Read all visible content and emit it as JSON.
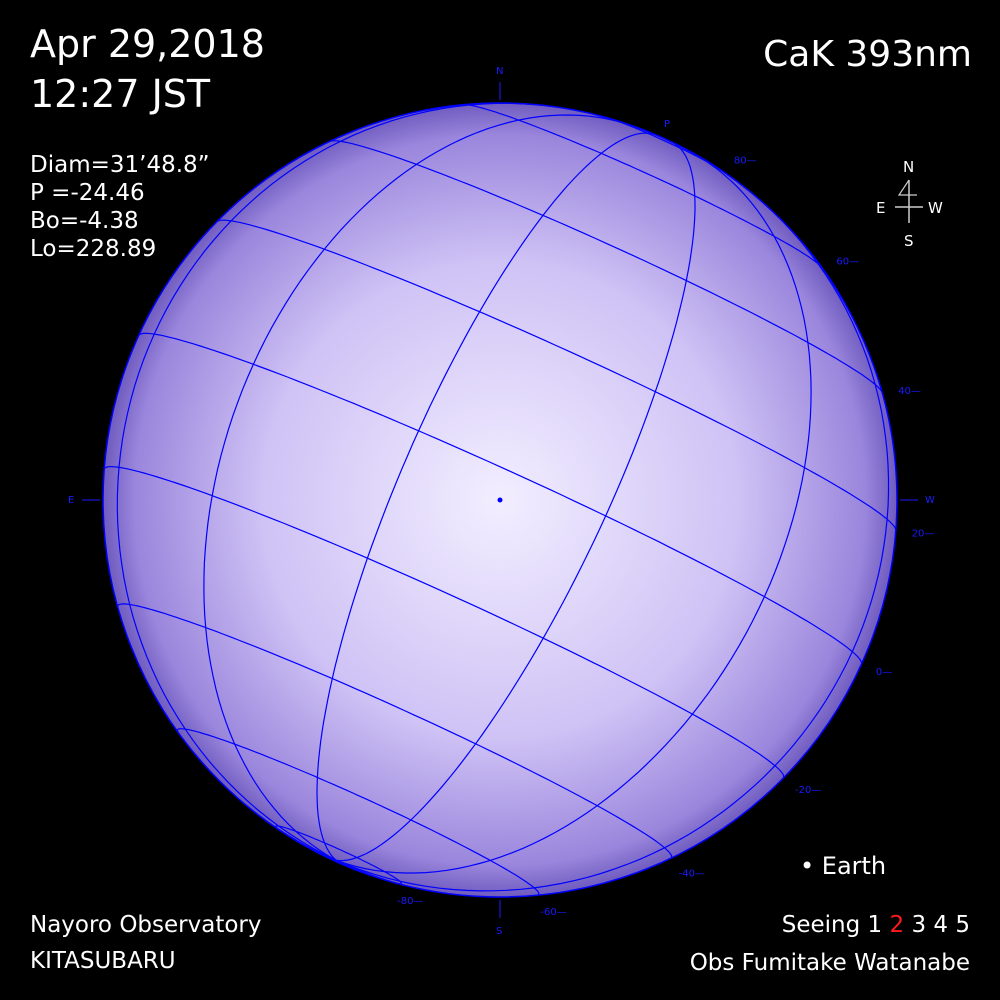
{
  "header": {
    "date": "Apr 29,2018",
    "time": "12:27 JST",
    "filter": "CaK 393nm"
  },
  "params": {
    "diam": "Diam=31’48.8”",
    "p": "P  =-24.46",
    "bo": "Bo=-4.38",
    "lo": "Lo=228.89"
  },
  "ephemeris": {
    "p_angle": -24.46,
    "b0": -4.38,
    "l0": 228.89
  },
  "footer": {
    "observatory": "Nayoro Observatory",
    "telescope": "KITASUBARU",
    "seeing_label": "Seeing",
    "seeing_values": [
      "1",
      "2",
      "3",
      "4",
      "5"
    ],
    "seeing_selected": "2",
    "observer": "Obs Fumitake Watanabe"
  },
  "legend": {
    "earth": "• Earth"
  },
  "compass": {
    "n": "N",
    "s": "S",
    "e": "E",
    "w": "W"
  },
  "limb_marks": {
    "n": "N",
    "s": "S",
    "e": "E",
    "w": "W",
    "p": "P"
  },
  "latitude_labels": [
    "80",
    "60",
    "40",
    "20",
    "0",
    "-20",
    "-40",
    "-60",
    "-80"
  ],
  "colors": {
    "grid": "#0000ff",
    "disk_center": "#f2eeff",
    "disk_limb": "#7a68c8",
    "seeing_selected": "#ff1a1a"
  }
}
